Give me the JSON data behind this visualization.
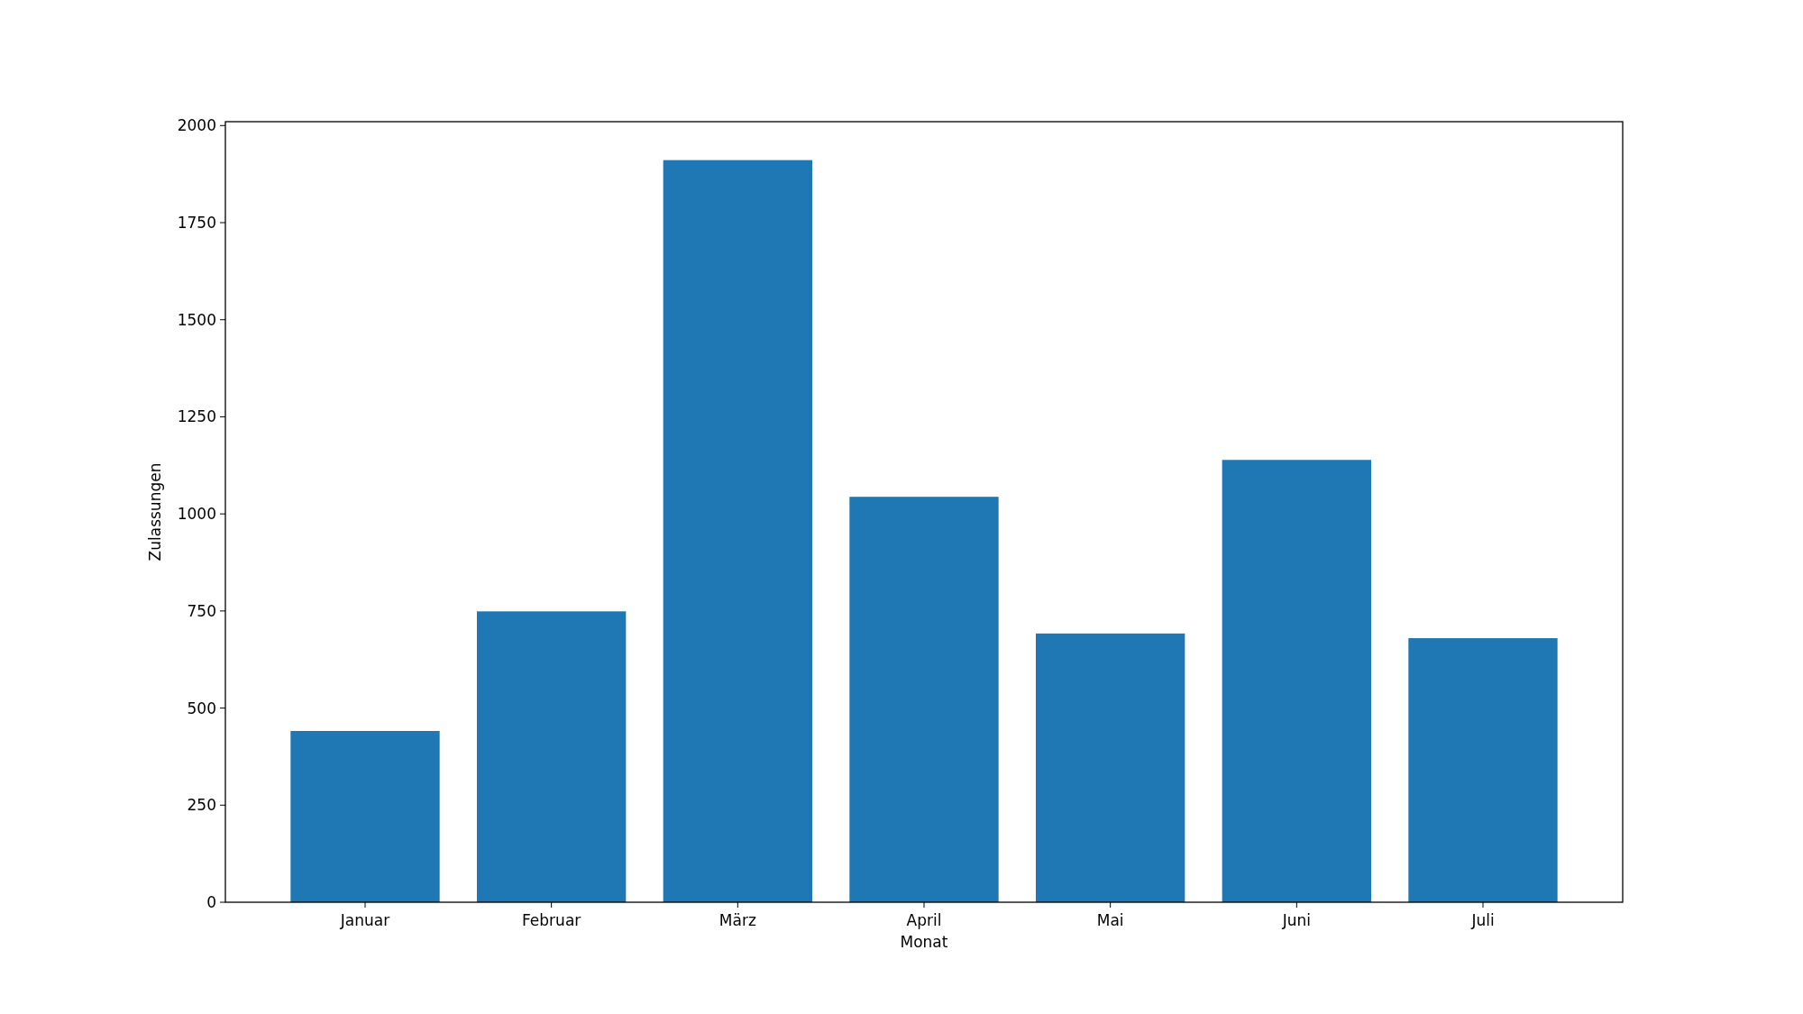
{
  "chart_data": {
    "type": "bar",
    "xlabel": "Monat",
    "ylabel": "Zulassungen",
    "categories": [
      "Januar",
      "Februar",
      "März",
      "April",
      "Mai",
      "Juni",
      "Juli"
    ],
    "values": [
      441,
      749,
      1911,
      1044,
      692,
      1139,
      680
    ],
    "color": "#1f77b4",
    "ylim": [
      0,
      2010
    ],
    "yticks": [
      0,
      250,
      500,
      750,
      1000,
      1250,
      1500,
      1750,
      2000
    ],
    "grid": false
  }
}
